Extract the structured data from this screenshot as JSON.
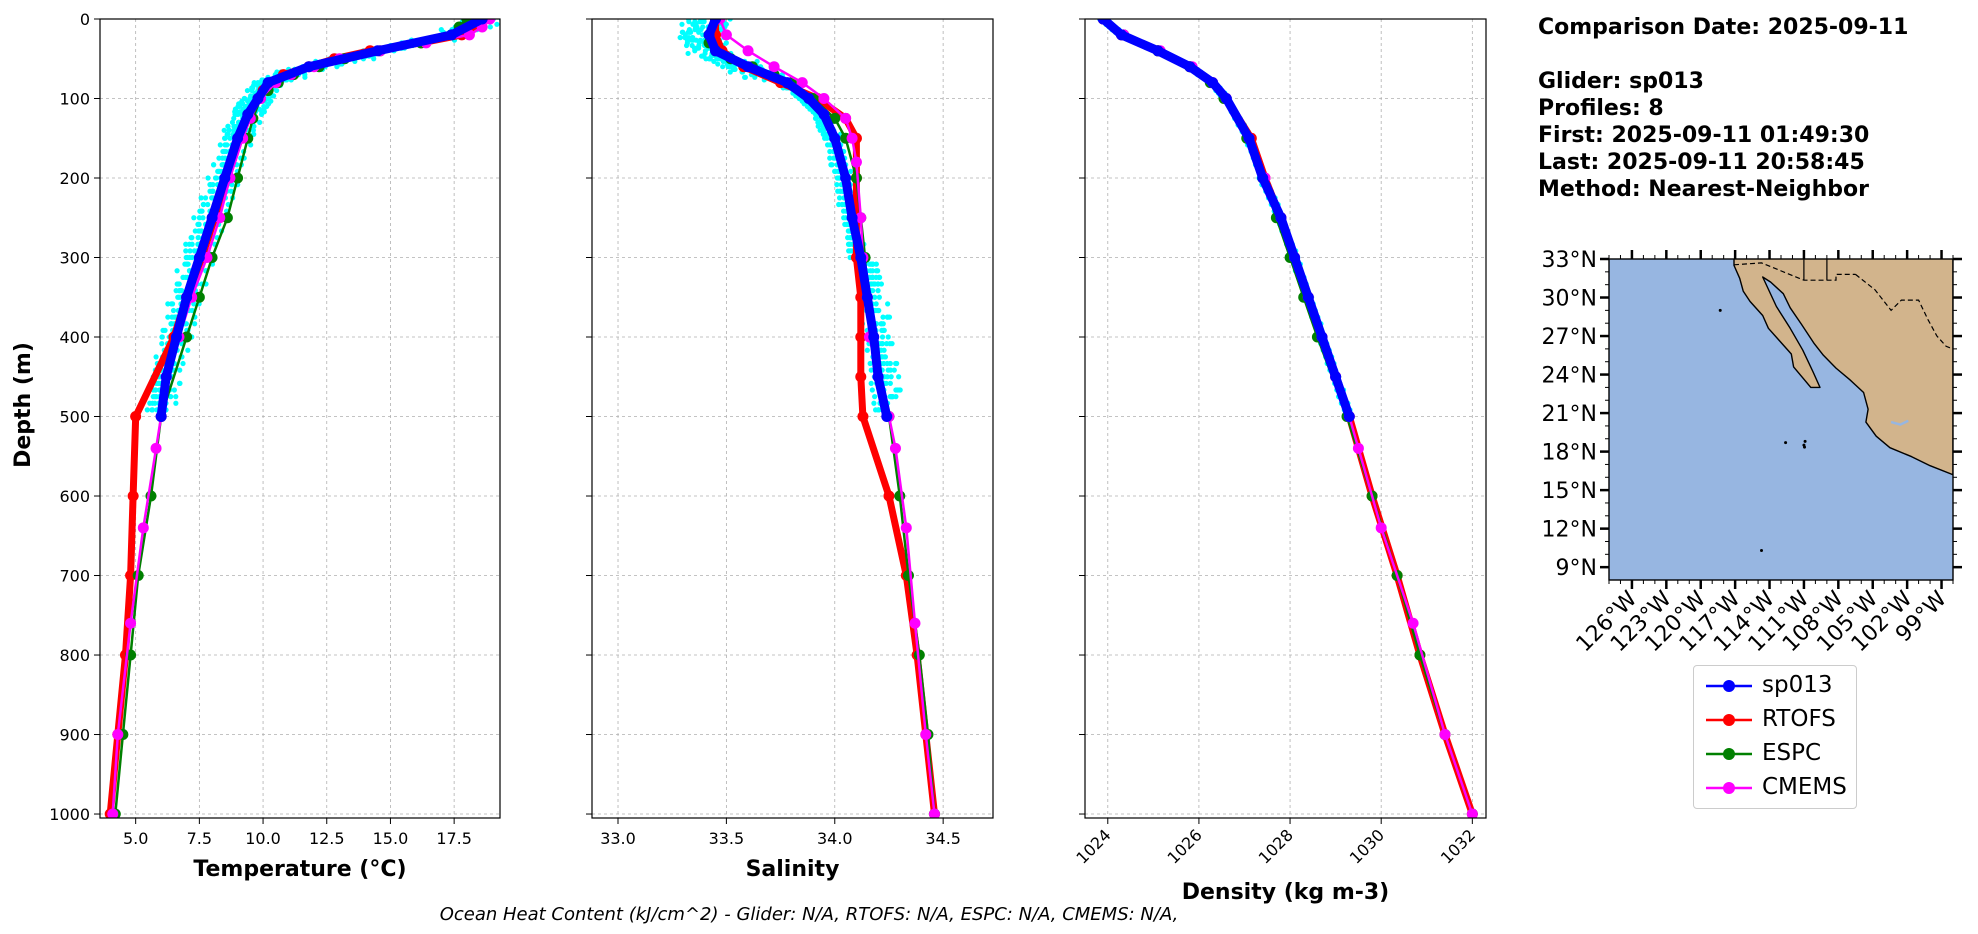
{
  "info": {
    "comparison": "Comparison Date: 2025-09-11",
    "glider": "Glider: sp013",
    "profiles": "Profiles: 8",
    "first": "First: 2025-09-11 01:49:30",
    "last": "Last: 2025-09-11 20:58:45",
    "method": "Method: Nearest-Neighbor"
  },
  "footer": "Ocean Heat Content (kJ/cm^2) - Glider: N/A,  RTOFS: N/A,  ESPC: N/A,  CMEMS: N/A,",
  "colors": {
    "sp013": "#0000ff",
    "glider_profiles": "#00ffff",
    "RTOFS": "#ff0000",
    "ESPC": "#008000",
    "CMEMS": "#ff00ff",
    "ocean": "#97b6e1",
    "land": "#d2b48c",
    "grid": "#b0b0b0"
  },
  "legend": [
    {
      "name": "sp013",
      "color": "#0000ff"
    },
    {
      "name": "RTOFS",
      "color": "#ff0000"
    },
    {
      "name": "ESPC",
      "color": "#008000"
    },
    {
      "name": "CMEMS",
      "color": "#ff00ff"
    }
  ],
  "chart_data": [
    {
      "type": "line",
      "xlabel": "Temperature (°C)",
      "ylabel": "Depth (m)",
      "xlim": [
        3.6,
        19.3
      ],
      "ylim": [
        1005,
        0
      ],
      "xticks": [
        5.0,
        7.5,
        10.0,
        12.5,
        15.0,
        17.5
      ],
      "xtick_labels": [
        "5.0",
        "7.5",
        "10.0",
        "12.5",
        "15.0",
        "17.5"
      ],
      "yticks": [
        0,
        100,
        200,
        300,
        400,
        500,
        600,
        700,
        800,
        900,
        1000
      ],
      "grid": true,
      "series": [
        {
          "name": "sp013",
          "depth": [
            0,
            20,
            40,
            60,
            80,
            100,
            120,
            150,
            200,
            250,
            300,
            350,
            400,
            450,
            500
          ],
          "values": [
            18.6,
            17.4,
            14.5,
            11.8,
            10.2,
            9.8,
            9.4,
            9.0,
            8.5,
            8.0,
            7.5,
            7.0,
            6.6,
            6.2,
            6.0
          ]
        },
        {
          "name": "RTOFS",
          "depth": [
            0,
            10,
            20,
            30,
            40,
            50,
            60,
            70,
            80,
            90,
            100,
            125,
            150,
            200,
            250,
            300,
            350,
            400,
            500,
            600,
            700,
            800,
            900,
            1000
          ],
          "values": [
            18.4,
            18.2,
            17.8,
            16.2,
            14.2,
            12.8,
            11.8,
            10.8,
            10.3,
            10.0,
            9.8,
            9.4,
            9.1,
            8.6,
            8.1,
            7.6,
            7.0,
            6.5,
            5.0,
            4.9,
            4.8,
            4.6,
            4.3,
            4.0
          ]
        },
        {
          "name": "ESPC",
          "depth": [
            0,
            10,
            20,
            30,
            40,
            50,
            60,
            70,
            80,
            90,
            100,
            125,
            150,
            200,
            250,
            300,
            350,
            400,
            500,
            600,
            700,
            800,
            900,
            1000
          ],
          "values": [
            18.0,
            17.7,
            17.4,
            16.2,
            14.6,
            13.2,
            12.2,
            11.2,
            10.6,
            10.2,
            9.9,
            9.6,
            9.4,
            9.0,
            8.6,
            8.0,
            7.5,
            7.0,
            6.0,
            5.6,
            5.1,
            4.8,
            4.5,
            4.2
          ]
        },
        {
          "name": "CMEMS",
          "depth": [
            0,
            10,
            20,
            30,
            40,
            50,
            60,
            70,
            80,
            100,
            125,
            150,
            200,
            250,
            300,
            350,
            400,
            450,
            500,
            540,
            640,
            760,
            900,
            1000
          ],
          "values": [
            18.9,
            18.6,
            18.1,
            16.4,
            14.6,
            13.0,
            12.0,
            11.1,
            10.5,
            9.9,
            9.5,
            9.2,
            8.7,
            8.3,
            7.8,
            7.2,
            6.7,
            6.2,
            6.0,
            5.8,
            5.3,
            4.8,
            4.3,
            4.1
          ]
        }
      ]
    },
    {
      "type": "line",
      "xlabel": "Salinity",
      "xlim": [
        32.88,
        34.73
      ],
      "ylim": [
        1005,
        0
      ],
      "xticks": [
        33.0,
        33.5,
        34.0,
        34.5
      ],
      "xtick_labels": [
        "33.0",
        "33.5",
        "34.0",
        "34.5"
      ],
      "yticks": [
        0,
        100,
        200,
        300,
        400,
        500,
        600,
        700,
        800,
        900,
        1000
      ],
      "grid": true,
      "series": [
        {
          "name": "sp013",
          "depth": [
            0,
            20,
            40,
            60,
            80,
            100,
            120,
            150,
            200,
            250,
            300,
            350,
            400,
            450,
            500
          ],
          "values": [
            33.45,
            33.42,
            33.45,
            33.6,
            33.78,
            33.88,
            33.95,
            34.0,
            34.05,
            34.08,
            34.12,
            34.15,
            34.18,
            34.2,
            34.24
          ]
        },
        {
          "name": "RTOFS",
          "depth": [
            0,
            20,
            40,
            60,
            80,
            100,
            125,
            150,
            200,
            250,
            300,
            350,
            400,
            450,
            500,
            600,
            700,
            800,
            900,
            1000
          ],
          "values": [
            33.45,
            33.45,
            33.48,
            33.58,
            33.75,
            33.92,
            34.05,
            34.1,
            34.1,
            34.1,
            34.1,
            34.12,
            34.12,
            34.12,
            34.13,
            34.25,
            34.33,
            34.38,
            34.42,
            34.46
          ]
        },
        {
          "name": "ESPC",
          "depth": [
            0,
            20,
            30,
            40,
            50,
            60,
            70,
            80,
            100,
            125,
            150,
            200,
            250,
            300,
            350,
            400,
            500,
            600,
            700,
            800,
            900,
            1000
          ],
          "values": [
            33.45,
            33.42,
            33.42,
            33.45,
            33.52,
            33.62,
            33.72,
            33.8,
            33.9,
            34.0,
            34.05,
            34.1,
            34.12,
            34.14,
            34.15,
            34.17,
            34.25,
            34.3,
            34.34,
            34.39,
            34.43,
            34.46
          ]
        },
        {
          "name": "CMEMS",
          "depth": [
            0,
            20,
            40,
            60,
            80,
            100,
            125,
            150,
            180,
            250,
            300,
            350,
            400,
            450,
            500,
            540,
            640,
            760,
            900,
            1000
          ],
          "values": [
            33.47,
            33.5,
            33.6,
            33.72,
            33.85,
            33.95,
            34.05,
            34.08,
            34.1,
            34.12,
            34.13,
            34.15,
            34.16,
            34.2,
            34.25,
            34.28,
            34.33,
            34.37,
            34.42,
            34.46
          ]
        }
      ]
    },
    {
      "type": "line",
      "xlabel": "Density (kg m-3)",
      "xlim": [
        1023.5,
        1032.3
      ],
      "ylim": [
        1005,
        0
      ],
      "xticks": [
        1024,
        1026,
        1028,
        1030,
        1032
      ],
      "xtick_labels": [
        "1024",
        "1026",
        "1028",
        "1030",
        "1032"
      ],
      "yticks": [
        0,
        100,
        200,
        300,
        400,
        500,
        600,
        700,
        800,
        900,
        1000
      ],
      "grid": true,
      "series": [
        {
          "name": "sp013",
          "depth": [
            0,
            20,
            40,
            60,
            80,
            100,
            150,
            200,
            250,
            300,
            350,
            400,
            450,
            500
          ],
          "values": [
            1023.9,
            1024.3,
            1025.1,
            1025.8,
            1026.3,
            1026.6,
            1027.1,
            1027.4,
            1027.8,
            1028.1,
            1028.4,
            1028.7,
            1029.0,
            1029.3
          ]
        },
        {
          "name": "RTOFS",
          "depth": [
            0,
            20,
            40,
            60,
            80,
            100,
            150,
            200,
            250,
            300,
            350,
            400,
            450,
            500,
            600,
            700,
            800,
            900,
            1000
          ],
          "values": [
            1023.9,
            1024.3,
            1025.1,
            1025.8,
            1026.3,
            1026.6,
            1027.15,
            1027.45,
            1027.8,
            1028.1,
            1028.4,
            1028.7,
            1029.0,
            1029.3,
            1029.8,
            1030.35,
            1030.85,
            1031.4,
            1032.0
          ]
        },
        {
          "name": "ESPC",
          "depth": [
            0,
            20,
            40,
            60,
            80,
            100,
            150,
            200,
            250,
            300,
            350,
            400,
            500,
            600,
            700,
            800,
            900,
            1000
          ],
          "values": [
            1023.9,
            1024.35,
            1025.1,
            1025.8,
            1026.25,
            1026.55,
            1027.05,
            1027.4,
            1027.7,
            1028.0,
            1028.3,
            1028.6,
            1029.25,
            1029.8,
            1030.35,
            1030.85,
            1031.4,
            1032.0
          ]
        },
        {
          "name": "CMEMS",
          "depth": [
            0,
            20,
            40,
            60,
            80,
            100,
            150,
            200,
            250,
            300,
            350,
            400,
            450,
            500,
            540,
            640,
            760,
            900,
            1000
          ],
          "values": [
            1023.9,
            1024.35,
            1025.15,
            1025.85,
            1026.3,
            1026.6,
            1027.1,
            1027.45,
            1027.8,
            1028.1,
            1028.4,
            1028.7,
            1029.0,
            1029.3,
            1029.5,
            1030.0,
            1030.7,
            1031.4,
            1032.0
          ]
        }
      ]
    },
    {
      "type": "map",
      "lon_range": [
        -128,
        -98
      ],
      "lat_range": [
        8,
        33
      ],
      "lat_ticks": [
        "33°N",
        "30°N",
        "27°N",
        "24°N",
        "21°N",
        "18°N",
        "15°N",
        "12°N",
        "9°N"
      ],
      "lon_ticks": [
        "126°W",
        "123°W",
        "120°W",
        "117°W",
        "114°W",
        "111°W",
        "108°W",
        "105°W",
        "102°W",
        "99°W"
      ]
    }
  ]
}
